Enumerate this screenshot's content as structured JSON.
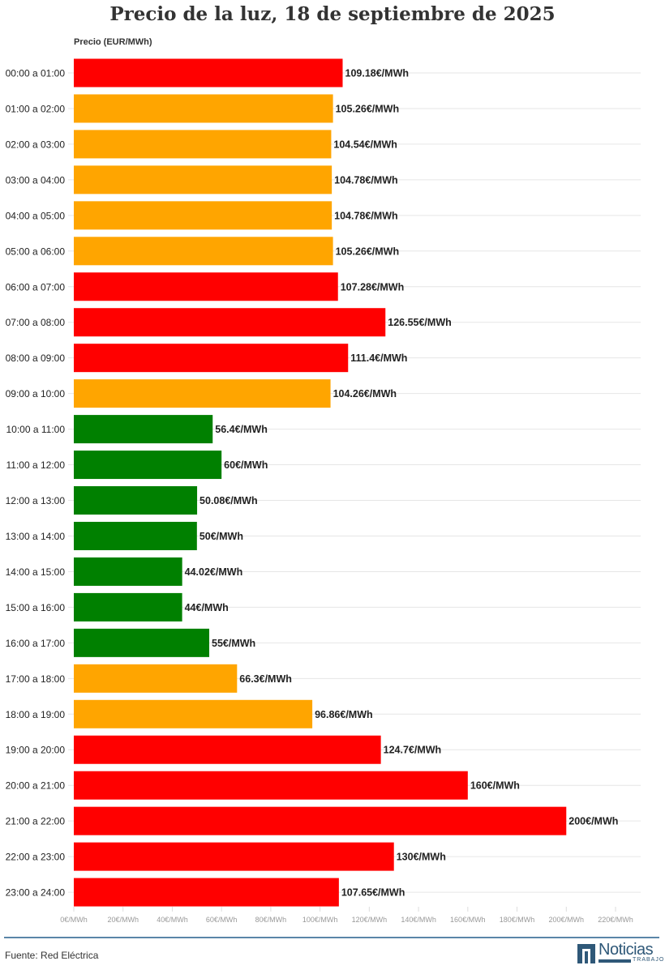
{
  "title": "Precio de la luz, 18 de septiembre de 2025",
  "source": "Fuente: Red Eléctrica",
  "logo": {
    "text": "Noticias",
    "sub": "TRABAJO"
  },
  "colors": {
    "high": "#ff0000",
    "mid": "#ffa500",
    "low": "#008000"
  },
  "chart_data": {
    "type": "bar",
    "orientation": "horizontal",
    "title": "Precio de la luz, 18 de septiembre de 2025",
    "xlabel": "",
    "ylabel": "Precio (EUR/MWh)",
    "xlim": [
      0,
      220
    ],
    "grid": true,
    "x_ticks": [
      "0€/MWh",
      "20€/MWh",
      "40€/MWh",
      "60€/MWh",
      "80€/MWh",
      "100€/MWh",
      "120€/MWh",
      "140€/MWh",
      "160€/MWh",
      "180€/MWh",
      "200€/MWh",
      "220€/MWh"
    ],
    "categories": [
      "00:00 a 01:00",
      "01:00 a 02:00",
      "02:00 a 03:00",
      "03:00 a 04:00",
      "04:00 a 05:00",
      "05:00 a 06:00",
      "06:00 a 07:00",
      "07:00 a 08:00",
      "08:00 a 09:00",
      "09:00 a 10:00",
      "10:00 a 11:00",
      "11:00 a 12:00",
      "12:00 a 13:00",
      "13:00 a 14:00",
      "14:00 a 15:00",
      "15:00 a 16:00",
      "16:00 a 17:00",
      "17:00 a 18:00",
      "18:00 a 19:00",
      "19:00 a 20:00",
      "20:00 a 21:00",
      "21:00 a 22:00",
      "22:00 a 23:00",
      "23:00 a 24:00"
    ],
    "values": [
      109.18,
      105.26,
      104.54,
      104.78,
      104.78,
      105.26,
      107.28,
      126.55,
      111.4,
      104.26,
      56.4,
      60,
      50.08,
      50,
      44.02,
      44,
      55,
      66.3,
      96.86,
      124.7,
      160,
      200,
      130,
      107.65
    ],
    "labels": [
      "109.18€/MWh",
      "105.26€/MWh",
      "104.54€/MWh",
      "104.78€/MWh",
      "104.78€/MWh",
      "105.26€/MWh",
      "107.28€/MWh",
      "126.55€/MWh",
      "111.4€/MWh",
      "104.26€/MWh",
      "56.4€/MWh",
      "60€/MWh",
      "50.08€/MWh",
      "50€/MWh",
      "44.02€/MWh",
      "44€/MWh",
      "55€/MWh",
      "66.3€/MWh",
      "96.86€/MWh",
      "124.7€/MWh",
      "160€/MWh",
      "200€/MWh",
      "130€/MWh",
      "107.65€/MWh"
    ],
    "bar_colors": [
      "#ff0000",
      "#ffa500",
      "#ffa500",
      "#ffa500",
      "#ffa500",
      "#ffa500",
      "#ff0000",
      "#ff0000",
      "#ff0000",
      "#ffa500",
      "#008000",
      "#008000",
      "#008000",
      "#008000",
      "#008000",
      "#008000",
      "#008000",
      "#ffa500",
      "#ffa500",
      "#ff0000",
      "#ff0000",
      "#ff0000",
      "#ff0000",
      "#ff0000"
    ]
  }
}
